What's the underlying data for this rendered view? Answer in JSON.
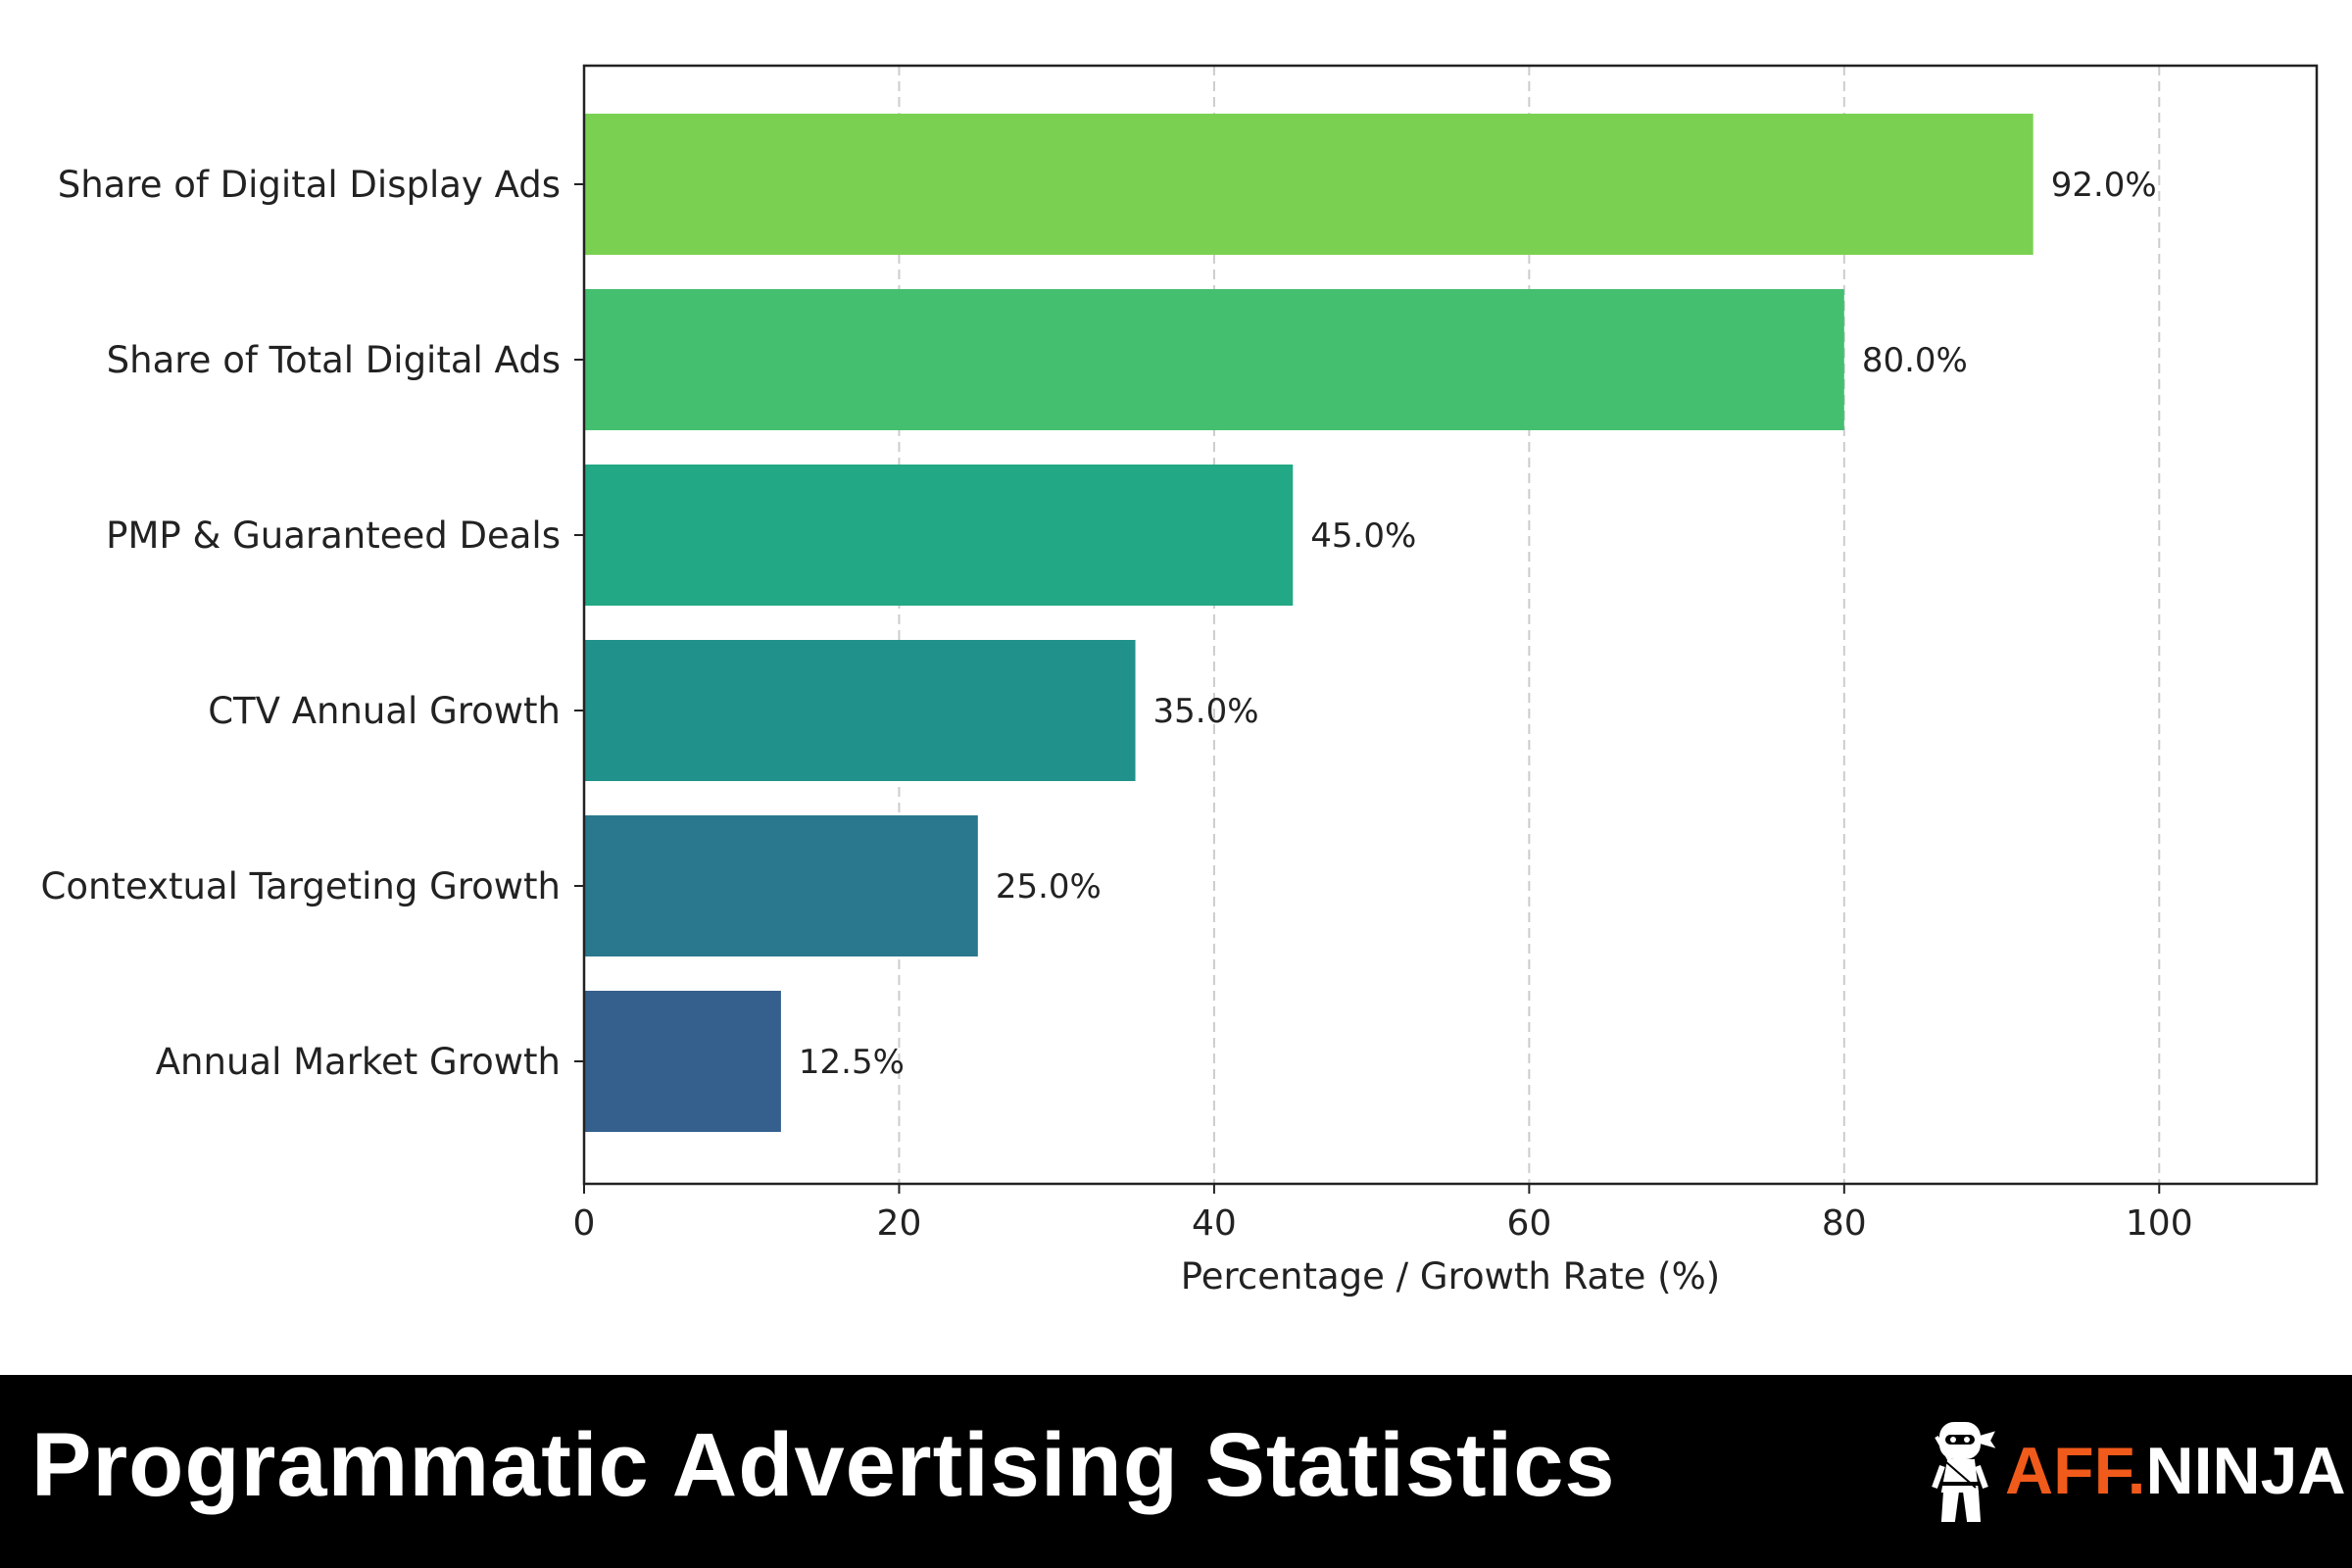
{
  "chart_data": {
    "type": "bar",
    "orientation": "horizontal",
    "categories": [
      "Share of Digital Display Ads",
      "Share of Total Digital Ads",
      "PMP & Guaranteed Deals",
      "CTV Annual Growth",
      "Contextual Targeting Growth",
      "Annual Market Growth"
    ],
    "values": [
      92.0,
      80.0,
      45.0,
      35.0,
      25.0,
      12.5
    ],
    "data_labels": [
      "92.0%",
      "80.0%",
      "45.0%",
      "35.0%",
      "25.0%",
      "12.5%"
    ],
    "colors": [
      "#7ad151",
      "#44bf70",
      "#22a884",
      "#21918c",
      "#2a788e",
      "#355f8d"
    ],
    "xlabel": "Percentage / Growth Rate (%)",
    "ylabel": "",
    "xlim": [
      0,
      110
    ],
    "xticks": [
      0,
      20,
      40,
      60,
      80,
      100
    ],
    "grid": "x-dashed",
    "legend": "none"
  },
  "banner": {
    "title": "Programmatic Advertising Statistics",
    "logo_part1": "AFF.",
    "logo_part2": "NINJA",
    "logo_icon": "ninja-mascot-icon",
    "accent_color": "#f05a1a"
  }
}
